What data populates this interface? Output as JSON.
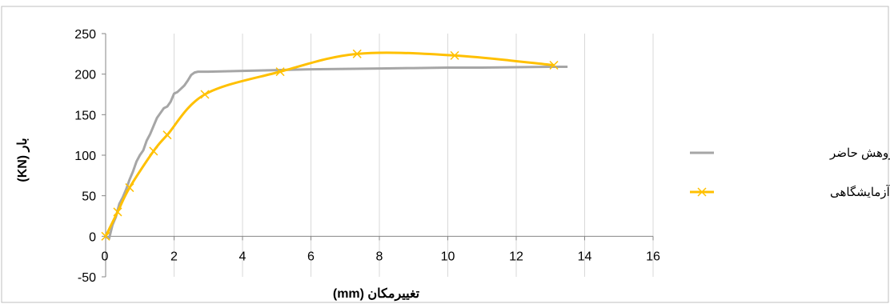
{
  "chart_data": {
    "type": "line",
    "title": "",
    "xlabel": "تغییرمکان (mm)",
    "ylabel": "بار (KN)",
    "xlim": [
      0,
      16
    ],
    "ylim": [
      -50,
      250
    ],
    "x_ticks": [
      0,
      2,
      4,
      6,
      8,
      10,
      12,
      14,
      16
    ],
    "y_ticks": [
      -50,
      0,
      50,
      100,
      150,
      200,
      250
    ],
    "x_tick_labels": [
      "0",
      "2",
      "4",
      "6",
      "8",
      "10",
      "12",
      "14",
      "16"
    ],
    "y_tick_labels": [
      "-50",
      "0",
      "50",
      "100",
      "150",
      "200",
      "250"
    ],
    "grid": {
      "vertical": true,
      "horizontal": false
    },
    "legend_position": "right",
    "series": [
      {
        "name": "منحنی پژوهش حاضر",
        "color": "#a6a6a6",
        "marker": "none",
        "x": [
          0,
          0.1,
          0.2,
          0.3,
          0.4,
          0.5,
          0.6,
          0.7,
          0.8,
          0.9,
          1.0,
          1.1,
          1.2,
          1.3,
          1.4,
          1.5,
          1.6,
          1.7,
          1.8,
          1.9,
          2.0,
          2.1,
          2.2,
          2.3,
          2.4,
          2.5,
          2.6,
          2.7,
          3.0,
          4.0,
          5.0,
          6.0,
          7.0,
          8.0,
          9.0,
          10.0,
          11.0,
          12.0,
          13.0,
          13.5
        ],
        "y": [
          0,
          -3,
          14,
          24,
          40,
          48,
          58,
          70,
          80,
          92,
          100,
          106,
          118,
          126,
          136,
          146,
          152,
          158,
          160,
          166,
          176,
          178,
          182,
          186,
          192,
          199,
          202,
          203,
          203,
          204,
          205,
          206,
          206.5,
          207,
          207.5,
          208,
          208,
          208.5,
          209,
          209
        ]
      },
      {
        "name": "منحنی پوش آزمایشگاهی",
        "color": "#ffc000",
        "marker": "x",
        "x": [
          0,
          0.35,
          0.7,
          1.4,
          1.8,
          2.9,
          5.1,
          7.35,
          10.2,
          13.1
        ],
        "y": [
          0,
          30,
          60,
          105,
          125,
          175,
          203,
          225,
          223,
          211
        ]
      }
    ]
  }
}
